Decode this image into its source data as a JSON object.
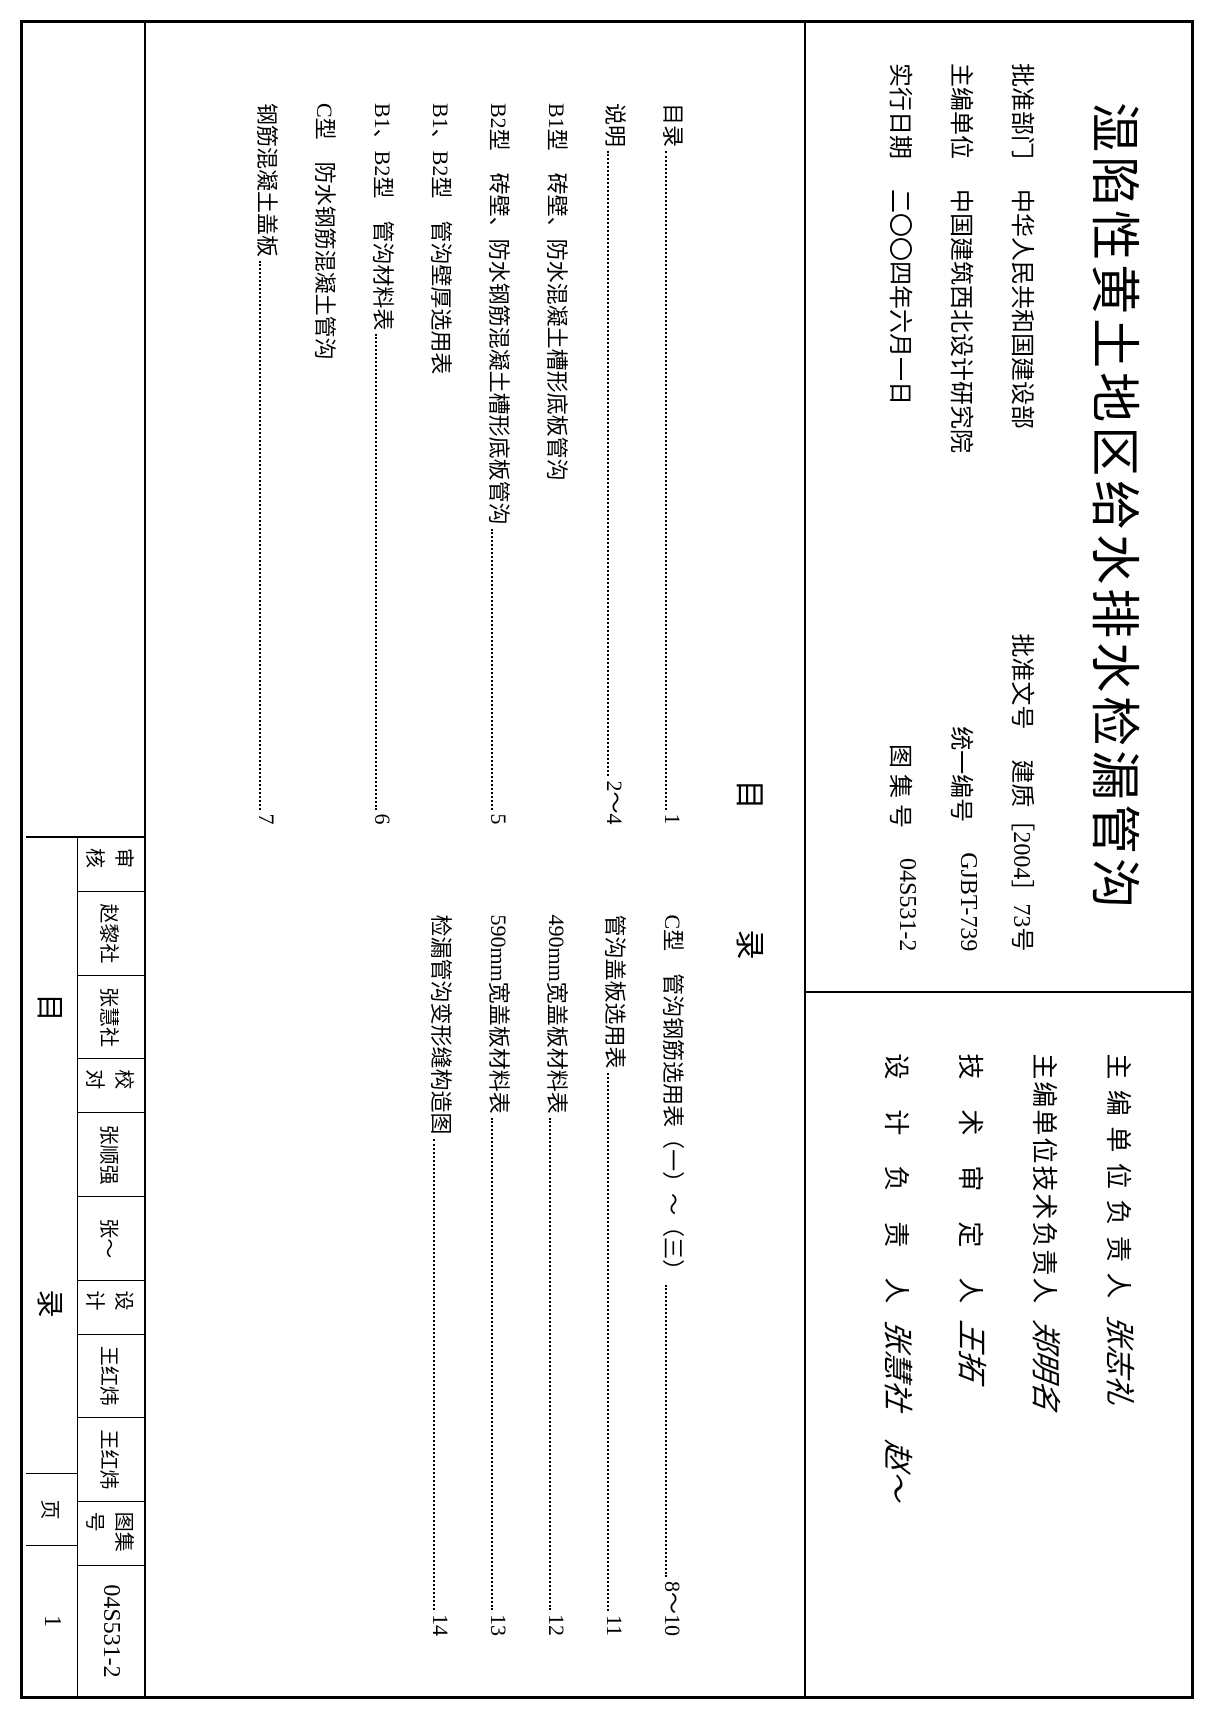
{
  "document": {
    "main_title": "湿陷性黄土地区给水排水检漏管沟",
    "toc_title": "目录",
    "colors": {
      "text": "#000000",
      "background": "#ffffff",
      "border": "#000000"
    }
  },
  "header_left": {
    "rows": [
      {
        "label": "批准部门",
        "value": "中华人民共和国建设部",
        "label2": "批准文号",
        "value2": "建质［2004］73号"
      },
      {
        "label": "主编单位",
        "value": "中国建筑西北设计研究院",
        "label2": "统一编号",
        "value2": "GJBT-739"
      },
      {
        "label": "实行日期",
        "value": "二〇〇四年六月一日",
        "label2": "图 集 号",
        "value2": "04S531-2"
      }
    ]
  },
  "header_right": {
    "signatures": [
      {
        "label": "主 编 单 位 负 责 人",
        "sig": "张志礼"
      },
      {
        "label": "主编单位技术负责人",
        "sig": "郑明名"
      },
      {
        "label": "技　术　审　定　人",
        "sig": "王拓"
      },
      {
        "label": "设　计　负　责　人",
        "sig": "张慧社　赵～"
      }
    ]
  },
  "toc": {
    "left_col": [
      {
        "text": "目录",
        "page": "1"
      },
      {
        "text": "说明",
        "page": "2～4"
      },
      {
        "text": "B1型　砖壁、防水混凝土槽形底板管沟",
        "sub": true
      },
      {
        "text": "B2型　砖壁、防水钢筋混凝土槽形底板管沟",
        "page": "5"
      },
      {
        "text": "B1、B2型　管沟壁厚选用表",
        "sub": true
      },
      {
        "text": "B1、B2型　管沟材料表",
        "page": "6"
      },
      {
        "text": "C型　防水钢筋混凝土管沟",
        "sub": true
      },
      {
        "text": "钢筋混凝土盖板",
        "page": "7"
      }
    ],
    "right_col": [
      {
        "text": "C型　管沟钢筋选用表（一）～（三）",
        "page": "8～10"
      },
      {
        "text": "管沟盖板选用表",
        "page": "11"
      },
      {
        "text": "490mm宽盖板材料表",
        "page": "12"
      },
      {
        "text": "590mm宽盖板材料表",
        "page": "13"
      },
      {
        "text": "检漏管沟变形缝构造图",
        "page": "14"
      }
    ]
  },
  "footer": {
    "title": "目　录",
    "tujihao_label": "图集号",
    "tujihao": "04S531-2",
    "page_label": "页",
    "page": "1",
    "row_cells": [
      {
        "label": "审核",
        "name": "赵黎社"
      },
      {
        "label": "",
        "name": "张慧社"
      },
      {
        "label": "校对",
        "name": "张顺强"
      },
      {
        "label": "",
        "name": "张～"
      },
      {
        "label": "设计",
        "name": "王红炜"
      },
      {
        "label": "",
        "name": "王红炜"
      }
    ]
  }
}
